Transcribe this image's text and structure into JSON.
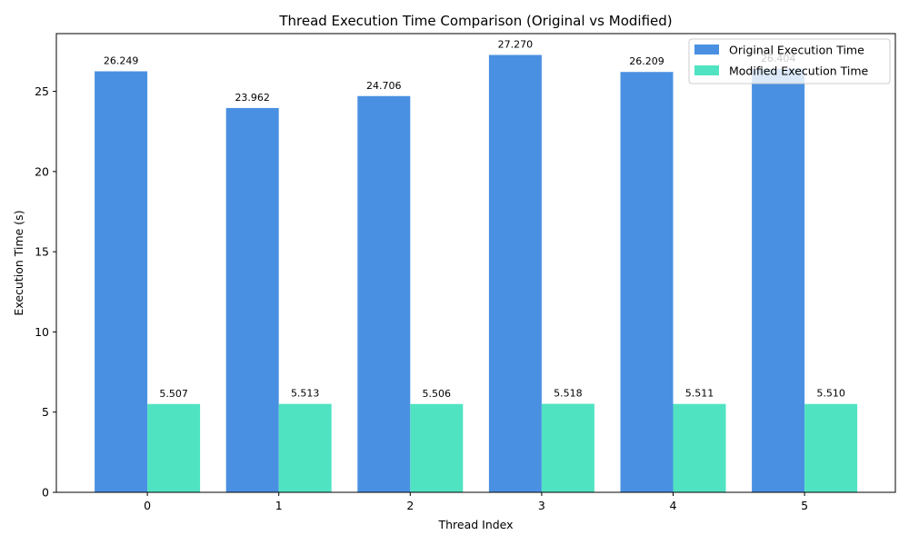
{
  "chart_data": {
    "type": "bar",
    "title": "Thread Execution Time Comparison (Original vs Modified)",
    "xlabel": "Thread Index",
    "ylabel": "Execution Time (s)",
    "categories": [
      "0",
      "1",
      "2",
      "3",
      "4",
      "5"
    ],
    "ylim": [
      0,
      28.6
    ],
    "yticks": [
      0,
      5,
      10,
      15,
      20,
      25
    ],
    "grid": false,
    "legend_position": "top-right",
    "series": [
      {
        "name": "Original Execution Time",
        "color": "#4a90e2",
        "values": [
          26.249,
          23.962,
          24.706,
          27.27,
          26.209,
          26.404
        ],
        "labels": [
          "26.249",
          "23.962",
          "24.706",
          "27.270",
          "26.209",
          "26.404"
        ]
      },
      {
        "name": "Modified Execution Time",
        "color": "#50e3c2",
        "values": [
          5.507,
          5.513,
          5.506,
          5.518,
          5.511,
          5.51
        ],
        "labels": [
          "5.507",
          "5.513",
          "5.506",
          "5.518",
          "5.511",
          "5.510"
        ]
      }
    ]
  }
}
